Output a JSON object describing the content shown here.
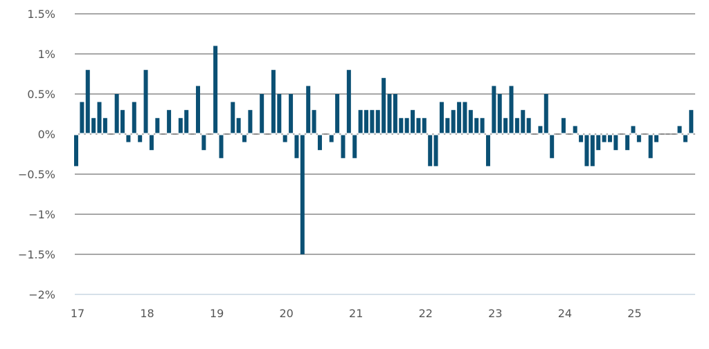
{
  "chart_data": {
    "type": "bar",
    "title": "",
    "xlabel": "",
    "ylabel": "",
    "ylim": [
      -2,
      1.5
    ],
    "y_ticks": [
      1.5,
      1,
      0.5,
      0,
      -0.5,
      -1,
      -1.5,
      -2
    ],
    "y_tick_labels": [
      "1.5%",
      "1%",
      "0.5%",
      "0%",
      "−0.5%",
      "−1%",
      "−1.5%",
      "−2%"
    ],
    "x_tick_labels": [
      "17",
      "18",
      "19",
      "20",
      "21",
      "22",
      "23",
      "24",
      "25"
    ],
    "x_start": "2017-01",
    "frequency": "monthly",
    "grid": true,
    "bar_color": "#0b5074",
    "values": [
      -0.4,
      0.4,
      0.8,
      0.2,
      0.4,
      0.2,
      0,
      0.5,
      0.3,
      -0.1,
      0.4,
      -0.1,
      0.8,
      -0.2,
      0.2,
      0,
      0.3,
      0,
      0.2,
      0.3,
      0,
      0.6,
      -0.2,
      0,
      1.1,
      -0.3,
      0,
      0.4,
      0.2,
      -0.1,
      0.3,
      0,
      0.5,
      0,
      0.8,
      0.5,
      -0.1,
      0.5,
      -0.3,
      -1.5,
      0.6,
      0.3,
      -0.2,
      0,
      -0.1,
      0.5,
      -0.3,
      0.8,
      -0.3,
      0.3,
      0.3,
      0.3,
      0.3,
      0.7,
      0.5,
      0.5,
      0.2,
      0.2,
      0.3,
      0.2,
      0.2,
      -0.4,
      -0.4,
      0.4,
      0.2,
      0.3,
      0.4,
      0.4,
      0.3,
      0.2,
      0.2,
      -0.4,
      0.6,
      0.5,
      0.2,
      0.6,
      0.2,
      0.3,
      0.2,
      0,
      0.1,
      0.5,
      -0.3,
      0,
      0.2,
      0,
      0.1,
      -0.1,
      -0.4,
      -0.4,
      -0.2,
      -0.1,
      -0.1,
      -0.2,
      0,
      -0.2,
      0.1,
      -0.1,
      0,
      -0.3,
      -0.1,
      0,
      0,
      0,
      0.1,
      -0.1,
      0.3
    ]
  }
}
